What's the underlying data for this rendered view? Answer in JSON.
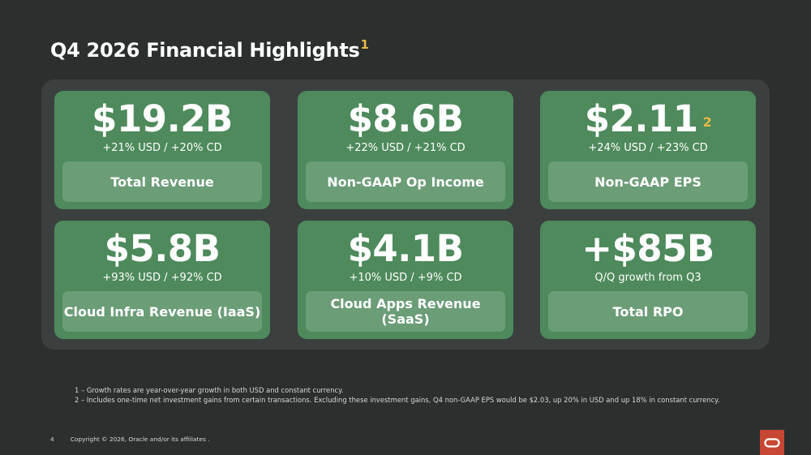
{
  "title": "Q4 2026 Financial Highlights",
  "title_footnote": "1",
  "cards": [
    {
      "metric": "$19.2B",
      "footnote": "",
      "growth": "+21% USD / +20% CD",
      "label": "Total Revenue"
    },
    {
      "metric": "$8.6B",
      "footnote": "",
      "growth": "+22% USD / +21% CD",
      "label": "Non-GAAP Op Income"
    },
    {
      "metric": "$2.11",
      "footnote": "2",
      "growth": "+24% USD / +23% CD",
      "label": "Non-GAAP EPS"
    },
    {
      "metric": "$5.8B",
      "footnote": "",
      "growth": "+93% USD / +92% CD",
      "label": "Cloud Infra Revenue (IaaS)"
    },
    {
      "metric": "$4.1B",
      "footnote": "",
      "growth": "+10% USD / +9% CD",
      "label": "Cloud Apps Revenue (SaaS)"
    },
    {
      "metric": "+$85B",
      "footnote": "",
      "growth": "Q/Q growth from Q3",
      "label": "Total RPO"
    }
  ],
  "footnotes": [
    "1 – Growth rates are year-over-year growth in both USD and constant currency.",
    "2 – Includes one-time net investment gains from certain transactions. Excluding these investment gains, Q4 non-GAAP EPS would be $2.03, up 20% in USD and up 18% in constant currency."
  ],
  "footer": {
    "page_number": "4",
    "copyright": "Copyright © 2026, Oracle and/or its affiliates ."
  },
  "colors": {
    "background": "#2b2f2e",
    "panel": "#3b403f",
    "card": "#4e8a5c",
    "label_box": "#6b9d77",
    "footnote_accent": "#e9b949",
    "logo": "#c74634"
  },
  "logo_icon": "oracle-logo-icon"
}
